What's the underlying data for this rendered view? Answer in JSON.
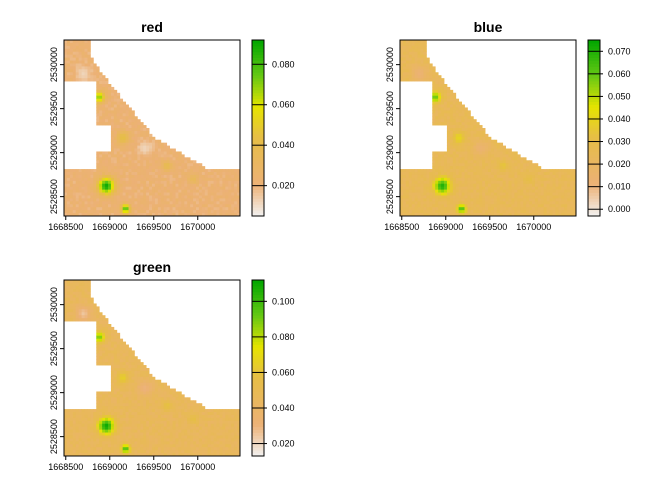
{
  "chart_data": [
    {
      "type": "heatmap",
      "title": "red",
      "x_ticks": [
        1668500,
        1669000,
        1669500,
        1670000
      ],
      "x_tick_labels": [
        "1668500",
        "1669000",
        "1669500",
        "1670000"
      ],
      "y_ticks": [
        2528500,
        2529000,
        2529500,
        2530000
      ],
      "y_tick_labels": [
        "2528500",
        "2529000",
        "2529500",
        "2530000"
      ],
      "xlim": [
        1668480,
        1670480
      ],
      "ylim": [
        2528280,
        2530280
      ],
      "colorbar": {
        "range": [
          0.005,
          0.092
        ],
        "ticks": [
          0.02,
          0.04,
          0.06,
          0.08
        ],
        "tick_labels": [
          "0.020",
          "0.040",
          "0.060",
          "0.080"
        ]
      },
      "background_value": 0.022,
      "hotspots": [
        {
          "x": 1668960,
          "y": 2528620,
          "value": 0.09,
          "r": 65
        },
        {
          "x": 1668880,
          "y": 2529630,
          "value": 0.07,
          "r": 45
        },
        {
          "x": 1669180,
          "y": 2528360,
          "value": 0.08,
          "r": 35
        },
        {
          "x": 1669150,
          "y": 2529170,
          "value": 0.045,
          "r": 50
        },
        {
          "x": 1669650,
          "y": 2528850,
          "value": 0.04,
          "r": 40
        },
        {
          "x": 1669950,
          "y": 2528700,
          "value": 0.035,
          "r": 40
        },
        {
          "x": 1668700,
          "y": 2529900,
          "value": 0.012,
          "r": 60
        },
        {
          "x": 1669400,
          "y": 2529050,
          "value": 0.012,
          "r": 60
        }
      ]
    },
    {
      "type": "heatmap",
      "title": "blue",
      "x_ticks": [
        1668500,
        1669000,
        1669500,
        1670000
      ],
      "x_tick_labels": [
        "1668500",
        "1669000",
        "1669500",
        "1670000"
      ],
      "y_ticks": [
        2528500,
        2529000,
        2529500,
        2530000
      ],
      "y_tick_labels": [
        "2528500",
        "2529000",
        "2529500",
        "2530000"
      ],
      "xlim": [
        1668480,
        1670480
      ],
      "ylim": [
        2528280,
        2530280
      ],
      "colorbar": {
        "range": [
          -0.003,
          0.075
        ],
        "ticks": [
          0.0,
          0.01,
          0.02,
          0.03,
          0.04,
          0.05,
          0.06,
          0.07
        ],
        "tick_labels": [
          "0.000",
          "0.010",
          "0.020",
          "0.030",
          "0.040",
          "0.050",
          "0.060",
          "0.070"
        ]
      },
      "background_value": 0.024,
      "hotspots": [
        {
          "x": 1668960,
          "y": 2528620,
          "value": 0.07,
          "r": 65
        },
        {
          "x": 1668880,
          "y": 2529630,
          "value": 0.06,
          "r": 45
        },
        {
          "x": 1669180,
          "y": 2528360,
          "value": 0.065,
          "r": 35
        },
        {
          "x": 1669150,
          "y": 2529170,
          "value": 0.04,
          "r": 50
        },
        {
          "x": 1669650,
          "y": 2528850,
          "value": 0.035,
          "r": 40
        },
        {
          "x": 1669950,
          "y": 2528700,
          "value": 0.032,
          "r": 40
        },
        {
          "x": 1668700,
          "y": 2529900,
          "value": 0.012,
          "r": 60
        },
        {
          "x": 1669400,
          "y": 2529050,
          "value": 0.014,
          "r": 60
        }
      ]
    },
    {
      "type": "heatmap",
      "title": "green",
      "x_ticks": [
        1668500,
        1669000,
        1669500,
        1670000
      ],
      "x_tick_labels": [
        "1668500",
        "1669000",
        "1669500",
        "1670000"
      ],
      "y_ticks": [
        2528500,
        2529000,
        2529500,
        2530000
      ],
      "y_tick_labels": [
        "2528500",
        "2529000",
        "2529500",
        "2530000"
      ],
      "xlim": [
        1668480,
        1670480
      ],
      "ylim": [
        2528280,
        2530280
      ],
      "colorbar": {
        "range": [
          0.013,
          0.112
        ],
        "ticks": [
          0.02,
          0.04,
          0.06,
          0.08,
          0.1
        ],
        "tick_labels": [
          "0.020",
          "0.040",
          "0.060",
          "0.080",
          "0.100"
        ]
      },
      "background_value": 0.045,
      "hotspots": [
        {
          "x": 1668960,
          "y": 2528620,
          "value": 0.11,
          "r": 65
        },
        {
          "x": 1668880,
          "y": 2529630,
          "value": 0.09,
          "r": 45
        },
        {
          "x": 1669180,
          "y": 2528360,
          "value": 0.1,
          "r": 35
        },
        {
          "x": 1669150,
          "y": 2529170,
          "value": 0.065,
          "r": 50
        },
        {
          "x": 1669650,
          "y": 2528850,
          "value": 0.06,
          "r": 40
        },
        {
          "x": 1669950,
          "y": 2528700,
          "value": 0.058,
          "r": 40
        },
        {
          "x": 1668700,
          "y": 2529900,
          "value": 0.025,
          "r": 60
        },
        {
          "x": 1669400,
          "y": 2529050,
          "value": 0.03,
          "r": 60
        }
      ]
    }
  ]
}
